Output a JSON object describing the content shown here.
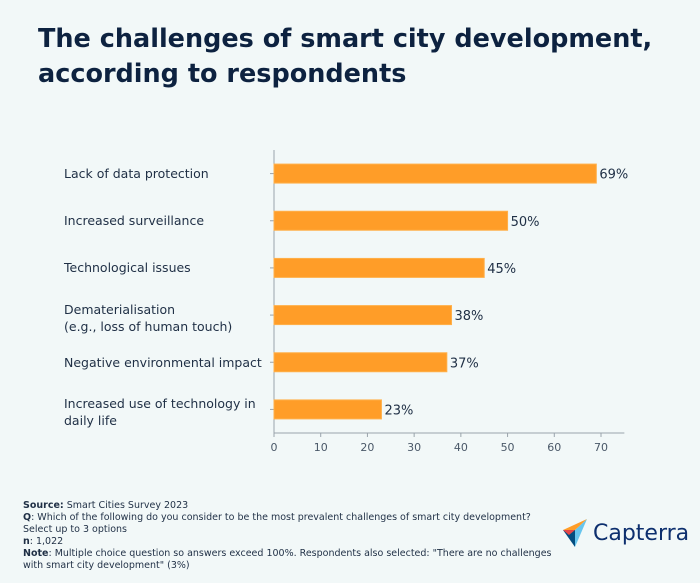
{
  "title": "The challenges of smart city development, according to respondents",
  "chart_data": {
    "type": "bar",
    "orientation": "horizontal",
    "categories": [
      "Lack of data protection",
      "Increased surveillance",
      "Technological issues",
      "Dematerialisation\n(e.g., loss of human touch)",
      "Negative environmental impact",
      "Increased use of technology in\n daily life"
    ],
    "values": [
      69,
      50,
      45,
      38,
      37,
      23
    ],
    "data_labels": [
      "69%",
      "50%",
      "45%",
      "38%",
      "37%",
      "23%"
    ],
    "xlim": [
      0,
      75
    ],
    "xticks": [
      0,
      10,
      20,
      30,
      40,
      50,
      60,
      70
    ],
    "grid": false,
    "bar_color": "#ff9d28",
    "title": "",
    "xlabel": "",
    "ylabel": ""
  },
  "footer": {
    "source_label": "Source:",
    "source": " Smart Cities Survey 2023",
    "q_label": "Q",
    "q": ": Which of the following do you consider to be the most prevalent challenges of smart city development? Select up to 3 options",
    "n_label": "n",
    "n": ": 1,022",
    "note_label": "Note",
    "note": ": Multiple choice question so answers exceed 100%. Respondents also selected: \"There are no challenges with smart city development\" (3%)"
  },
  "logo": {
    "text": "Capterra",
    "colors": [
      "#ff9d28",
      "#68c5ed",
      "#044d80",
      "#e54747"
    ]
  }
}
